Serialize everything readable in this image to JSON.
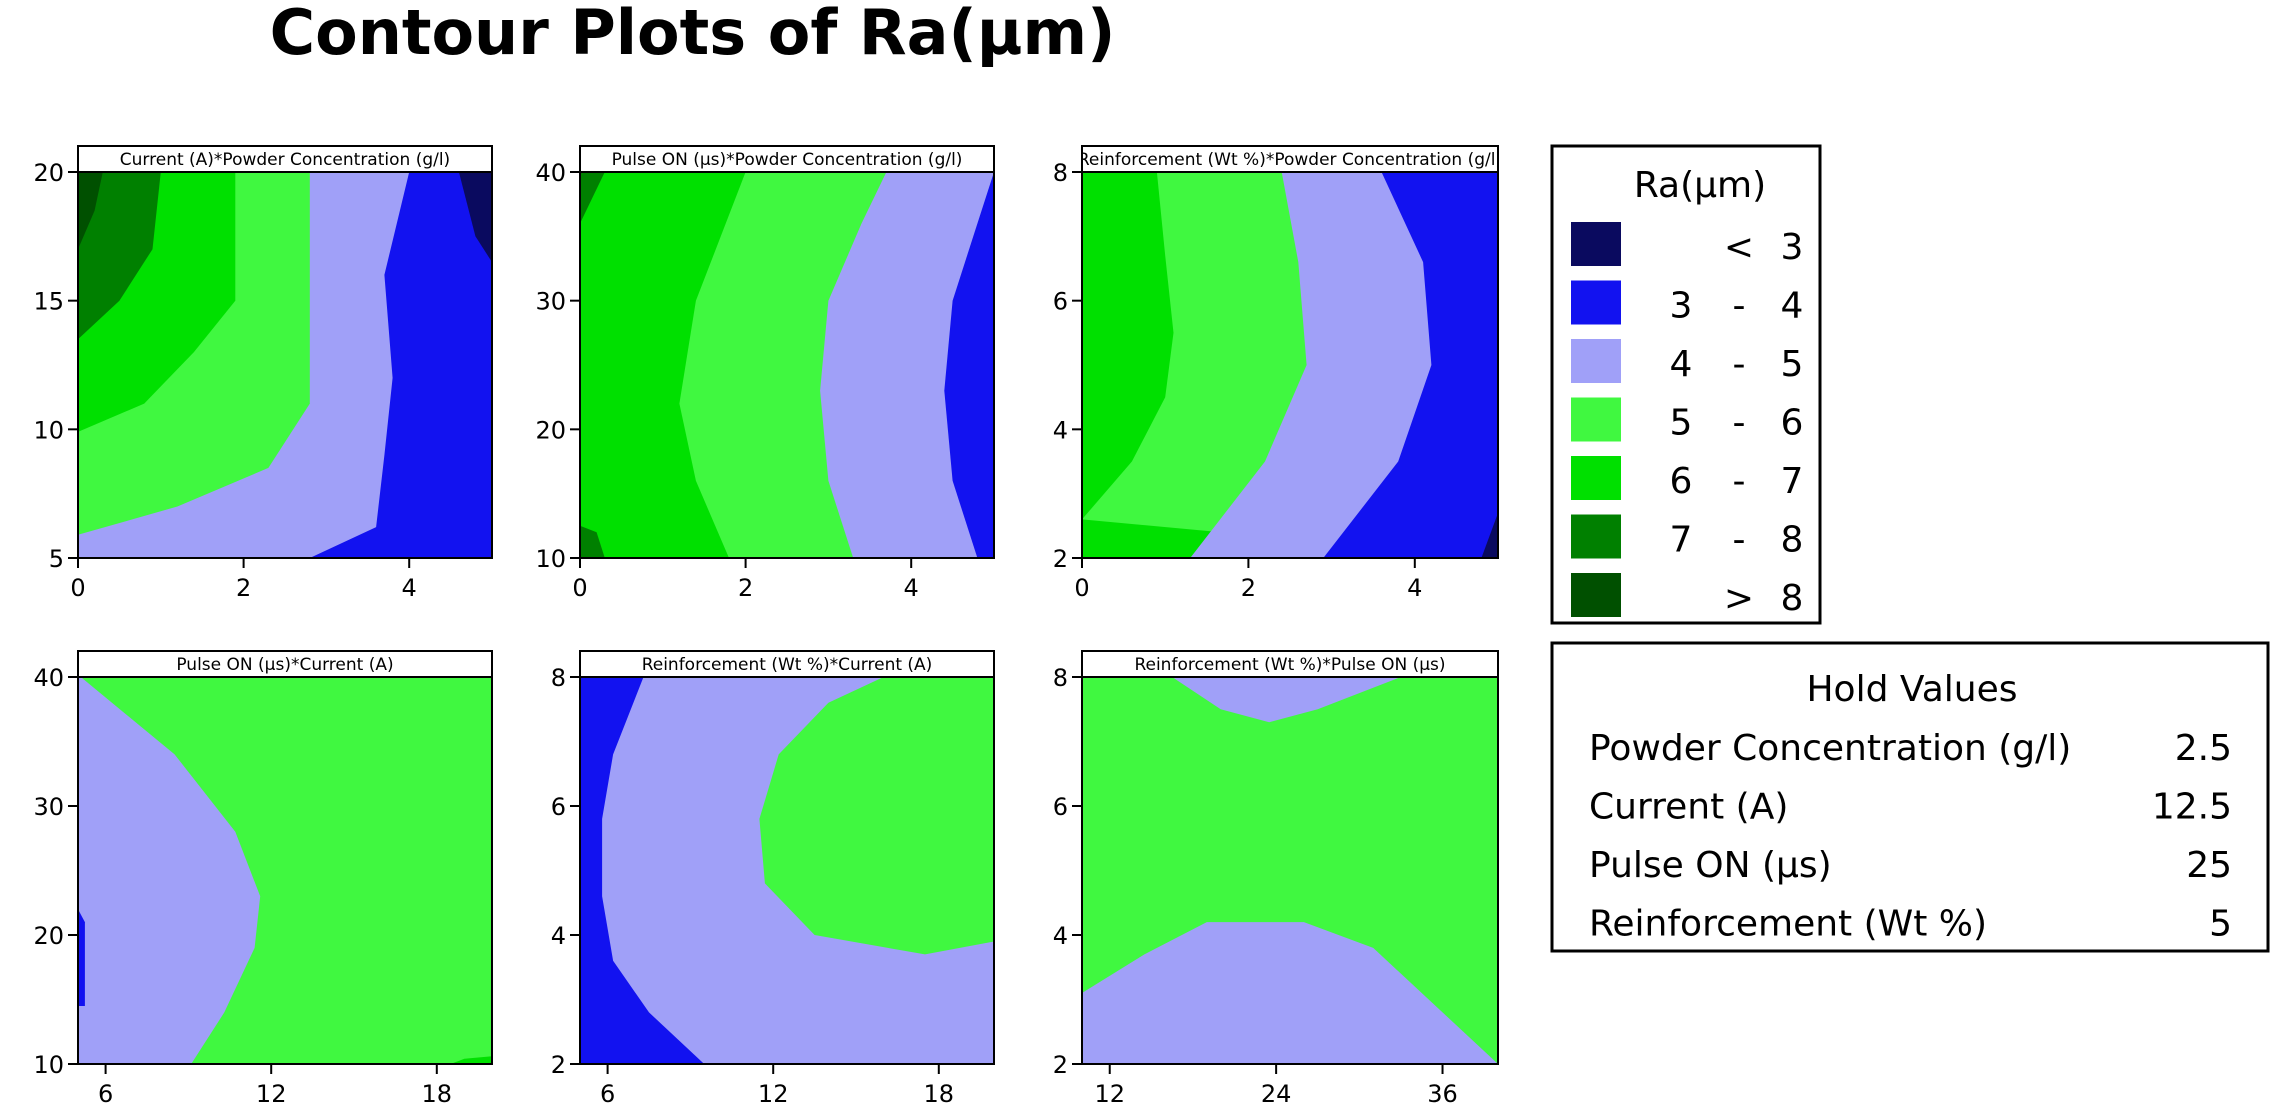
{
  "title": "Contour Plots of Ra(µm)",
  "legend": {
    "title": "Ra(µm)",
    "entries": [
      {
        "color": "#0a0a5f",
        "low": "",
        "sep": "<",
        "high": "3"
      },
      {
        "color": "#1212f0",
        "low": "3",
        "sep": "-",
        "high": "4"
      },
      {
        "color": "#a0a0f8",
        "low": "4",
        "sep": "-",
        "high": "5"
      },
      {
        "color": "#40f840",
        "low": "5",
        "sep": "-",
        "high": "6"
      },
      {
        "color": "#00e000",
        "low": "6",
        "sep": "-",
        "high": "7"
      },
      {
        "color": "#008000",
        "low": "7",
        "sep": "-",
        "high": "8"
      },
      {
        "color": "#005000",
        "low": "",
        "sep": ">",
        "high": "8"
      }
    ]
  },
  "hold_values": {
    "title": "Hold Values",
    "rows": [
      {
        "name": "Powder Concentration (g/l)",
        "value": "2.5"
      },
      {
        "name": "Current (A)",
        "value": "12.5"
      },
      {
        "name": "Pulse ON (µs)",
        "value": "25"
      },
      {
        "name": "Reinforcement (Wt %)",
        "value": "5"
      }
    ]
  },
  "chart_data": [
    {
      "type": "contour",
      "title": "Current (A)*Powder Concentration (g/l)",
      "x_ticks": [
        "0",
        "2",
        "4"
      ],
      "y_ticks": [
        "5",
        "10",
        "15",
        "20"
      ],
      "xlim": [
        0,
        5
      ],
      "ylim": [
        5,
        20
      ],
      "x_tick_values": [
        0,
        2,
        4
      ],
      "y_tick_values": [
        5,
        10,
        15,
        20
      ],
      "regions": [
        {
          "band": "4 - 5",
          "points": [
            [
              0,
              5
            ],
            [
              5,
              5
            ],
            [
              5,
              20
            ],
            [
              0,
              20
            ]
          ]
        },
        {
          "band": "3 - 4",
          "points": [
            [
              4.0,
              20
            ],
            [
              3.7,
              16
            ],
            [
              3.8,
              12
            ],
            [
              3.7,
              9
            ],
            [
              3.6,
              6.2
            ],
            [
              2.8,
              5
            ],
            [
              5,
              5
            ],
            [
              5,
              20
            ]
          ]
        },
        {
          "band": "< 3",
          "points": [
            [
              4.6,
              20
            ],
            [
              4.8,
              17.5
            ],
            [
              5,
              16.5
            ],
            [
              5,
              20
            ]
          ]
        },
        {
          "band": "5 - 6",
          "points": [
            [
              0,
              5.9
            ],
            [
              1.2,
              7
            ],
            [
              2.3,
              8.5
            ],
            [
              2.8,
              11
            ],
            [
              2.8,
              20
            ],
            [
              0,
              20
            ]
          ]
        },
        {
          "band": "6 - 7",
          "points": [
            [
              0,
              9.9
            ],
            [
              0.8,
              11
            ],
            [
              1.4,
              13
            ],
            [
              1.9,
              15
            ],
            [
              1.9,
              20
            ],
            [
              0,
              20
            ]
          ]
        },
        {
          "band": "7 - 8",
          "points": [
            [
              0,
              13.5
            ],
            [
              0.5,
              15
            ],
            [
              0.9,
              17
            ],
            [
              1.0,
              20
            ],
            [
              0,
              20
            ]
          ]
        },
        {
          "band": "> 8",
          "points": [
            [
              0,
              17
            ],
            [
              0.2,
              18.5
            ],
            [
              0.3,
              20
            ],
            [
              0,
              20
            ]
          ]
        }
      ]
    },
    {
      "type": "contour",
      "title": "Pulse ON (µs)*Powder Concentration (g/l)",
      "x_ticks": [
        "0",
        "2",
        "4"
      ],
      "y_ticks": [
        "10",
        "20",
        "30",
        "40"
      ],
      "xlim": [
        0,
        5
      ],
      "ylim": [
        10,
        40
      ],
      "x_tick_values": [
        0,
        2,
        4
      ],
      "y_tick_values": [
        10,
        20,
        30,
        40
      ],
      "regions": [
        {
          "band": "6 - 7",
          "points": [
            [
              0,
              10
            ],
            [
              5,
              10
            ],
            [
              5,
              40
            ],
            [
              0,
              40
            ]
          ]
        },
        {
          "band": "5 - 6",
          "points": [
            [
              1.8,
              10
            ],
            [
              1.4,
              16
            ],
            [
              1.2,
              22
            ],
            [
              1.4,
              30
            ],
            [
              1.7,
              35
            ],
            [
              2.0,
              40
            ],
            [
              5,
              40
            ],
            [
              5,
              10
            ]
          ]
        },
        {
          "band": "4 - 5",
          "points": [
            [
              3.3,
              10
            ],
            [
              3.0,
              16
            ],
            [
              2.9,
              23
            ],
            [
              3.0,
              30
            ],
            [
              3.4,
              36
            ],
            [
              3.7,
              40
            ],
            [
              5,
              40
            ],
            [
              5,
              10
            ]
          ]
        },
        {
          "band": "3 - 4",
          "points": [
            [
              4.8,
              10
            ],
            [
              4.5,
              16
            ],
            [
              4.4,
              23
            ],
            [
              4.5,
              30
            ],
            [
              4.8,
              36
            ],
            [
              5,
              40
            ],
            [
              5,
              10
            ]
          ]
        },
        {
          "band": "7 - 8",
          "points": [
            [
              0,
              10
            ],
            [
              0.3,
              10
            ],
            [
              0.2,
              12
            ],
            [
              0,
              12.5
            ]
          ]
        },
        {
          "band": "7 - 8",
          "points": [
            [
              0,
              36
            ],
            [
              0.15,
              38
            ],
            [
              0.3,
              40
            ],
            [
              0,
              40
            ]
          ]
        }
      ]
    },
    {
      "type": "contour",
      "title": "Reinforcement (Wt %)*Powder Concentration (g/l)",
      "x_ticks": [
        "0",
        "2",
        "4"
      ],
      "y_ticks": [
        "2",
        "4",
        "6",
        "8"
      ],
      "xlim": [
        0,
        5
      ],
      "ylim": [
        2,
        8
      ],
      "x_tick_values": [
        0,
        2,
        4
      ],
      "y_tick_values": [
        2,
        4,
        6,
        8
      ],
      "regions": [
        {
          "band": "6 - 7",
          "points": [
            [
              0,
              2
            ],
            [
              5,
              2
            ],
            [
              5,
              8
            ],
            [
              0,
              8
            ]
          ]
        },
        {
          "band": "5 - 6",
          "points": [
            [
              0,
              2.6
            ],
            [
              0.6,
              3.5
            ],
            [
              1.0,
              4.5
            ],
            [
              1.1,
              5.5
            ],
            [
              1.0,
              6.7
            ],
            [
              0.9,
              8
            ],
            [
              5,
              8
            ],
            [
              5,
              2
            ]
          ]
        },
        {
          "band": "4 - 5",
          "points": [
            [
              1.3,
              2
            ],
            [
              2.2,
              3.5
            ],
            [
              2.7,
              5
            ],
            [
              2.6,
              6.6
            ],
            [
              2.4,
              8
            ],
            [
              5,
              8
            ],
            [
              5,
              2
            ]
          ]
        },
        {
          "band": "3 - 4",
          "points": [
            [
              2.9,
              2
            ],
            [
              3.8,
              3.5
            ],
            [
              4.2,
              5
            ],
            [
              4.1,
              6.6
            ],
            [
              3.6,
              8
            ],
            [
              5,
              8
            ],
            [
              5,
              2
            ]
          ]
        },
        {
          "band": "< 3",
          "points": [
            [
              4.8,
              2
            ],
            [
              5,
              2.7
            ],
            [
              5,
              2
            ]
          ]
        }
      ]
    },
    {
      "type": "contour",
      "title": "Pulse ON (µs)*Current (A)",
      "x_ticks": [
        "6",
        "12",
        "18"
      ],
      "y_ticks": [
        "10",
        "20",
        "30",
        "40"
      ],
      "xlim": [
        5,
        20
      ],
      "ylim": [
        10,
        40
      ],
      "x_tick_values": [
        6,
        12,
        18
      ],
      "y_tick_values": [
        10,
        20,
        30,
        40
      ],
      "regions": [
        {
          "band": "5 - 6",
          "points": [
            [
              5,
              10
            ],
            [
              20,
              10
            ],
            [
              20,
              40
            ],
            [
              5,
              40
            ]
          ]
        },
        {
          "band": "4 - 5",
          "points": [
            [
              5,
              10
            ],
            [
              9.1,
              10
            ],
            [
              10.3,
              14
            ],
            [
              11.4,
              19
            ],
            [
              11.6,
              23
            ],
            [
              10.7,
              28
            ],
            [
              8.5,
              34
            ],
            [
              5.1,
              40
            ],
            [
              5,
              40
            ]
          ]
        },
        {
          "band": "3 - 4",
          "points": [
            [
              5,
              14.5
            ],
            [
              5.25,
              14.5
            ],
            [
              5.25,
              21
            ],
            [
              5,
              22
            ]
          ]
        },
        {
          "band": "6 - 7",
          "points": [
            [
              18.5,
              10
            ],
            [
              20,
              10
            ],
            [
              20,
              10.6
            ],
            [
              19,
              10.4
            ]
          ]
        }
      ]
    },
    {
      "type": "contour",
      "title": "Reinforcement (Wt %)*Current (A)",
      "x_ticks": [
        "6",
        "12",
        "18"
      ],
      "y_ticks": [
        "2",
        "4",
        "6",
        "8"
      ],
      "xlim": [
        5,
        20
      ],
      "ylim": [
        2,
        8
      ],
      "x_tick_values": [
        6,
        12,
        18
      ],
      "y_tick_values": [
        2,
        4,
        6,
        8
      ],
      "regions": [
        {
          "band": "4 - 5",
          "points": [
            [
              5,
              2
            ],
            [
              20,
              2
            ],
            [
              20,
              8
            ],
            [
              5,
              8
            ]
          ]
        },
        {
          "band": "3 - 4",
          "points": [
            [
              5,
              2
            ],
            [
              9.5,
              2
            ],
            [
              7.5,
              2.8
            ],
            [
              6.2,
              3.6
            ],
            [
              5.8,
              4.6
            ],
            [
              5.8,
              5.8
            ],
            [
              6.2,
              6.8
            ],
            [
              7.3,
              8
            ],
            [
              5,
              8
            ]
          ]
        },
        {
          "band": "5 - 6",
          "points": [
            [
              20,
              3.9
            ],
            [
              17.5,
              3.7
            ],
            [
              13.5,
              4.0
            ],
            [
              11.7,
              4.8
            ],
            [
              11.5,
              5.8
            ],
            [
              12.2,
              6.8
            ],
            [
              14.0,
              7.6
            ],
            [
              16.0,
              8
            ],
            [
              20,
              8
            ]
          ]
        }
      ]
    },
    {
      "type": "contour",
      "title": "Reinforcement (Wt %)*Pulse ON (µs)",
      "x_ticks": [
        "12",
        "24",
        "36"
      ],
      "y_ticks": [
        "2",
        "4",
        "6",
        "8"
      ],
      "xlim": [
        10,
        40
      ],
      "ylim": [
        2,
        8
      ],
      "x_tick_values": [
        12,
        24,
        36
      ],
      "y_tick_values": [
        2,
        4,
        6,
        8
      ],
      "regions": [
        {
          "band": "5 - 6",
          "points": [
            [
              10,
              2
            ],
            [
              40,
              2
            ],
            [
              40,
              8
            ],
            [
              10,
              8
            ]
          ]
        },
        {
          "band": "4 - 5",
          "points": [
            [
              10,
              2
            ],
            [
              40,
              2
            ],
            [
              35,
              3.0
            ],
            [
              31,
              3.8
            ],
            [
              26,
              4.2
            ],
            [
              19,
              4.2
            ],
            [
              14.5,
              3.7
            ],
            [
              10,
              3.1
            ]
          ]
        },
        {
          "band": "4 - 5",
          "points": [
            [
              16.5,
              8
            ],
            [
              20,
              7.5
            ],
            [
              23.5,
              7.3
            ],
            [
              27,
              7.5
            ],
            [
              33,
              8
            ]
          ]
        }
      ]
    }
  ]
}
